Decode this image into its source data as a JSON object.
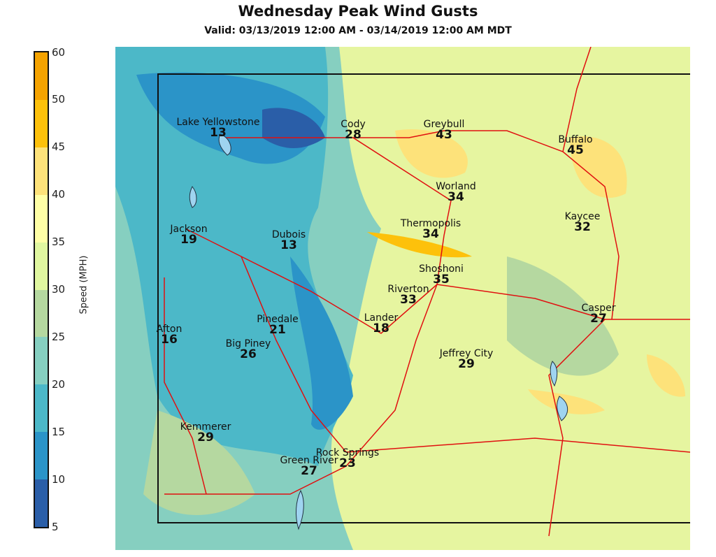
{
  "title": "Wednesday Peak Wind Gusts",
  "subtitle": "Valid: 03/13/2019 12:00 AM - 03/14/2019 12:00 AM MDT",
  "colorbar": {
    "label": "Speed (MPH)",
    "ticks": [
      "60",
      "50",
      "45",
      "40",
      "35",
      "30",
      "25",
      "20",
      "15",
      "10",
      "5"
    ],
    "colors": [
      "#f5a300",
      "#fdc10b",
      "#fde27a",
      "#ffffa6",
      "#e0f7a0",
      "#b5d8a0",
      "#86cfc0",
      "#4cb8c8",
      "#2b94c8",
      "#2a5ea8"
    ]
  },
  "cities": [
    {
      "name": "Lake Yellowstone",
      "value": "13"
    },
    {
      "name": "Cody",
      "value": "28"
    },
    {
      "name": "Greybull",
      "value": "43"
    },
    {
      "name": "Buffalo",
      "value": "45"
    },
    {
      "name": "Worland",
      "value": "34"
    },
    {
      "name": "Kaycee",
      "value": "32"
    },
    {
      "name": "Jackson",
      "value": "19"
    },
    {
      "name": "Dubois",
      "value": "13"
    },
    {
      "name": "Thermopolis",
      "value": "34"
    },
    {
      "name": "Shoshoni",
      "value": "35"
    },
    {
      "name": "Riverton",
      "value": "33"
    },
    {
      "name": "Casper",
      "value": "27"
    },
    {
      "name": "Afton",
      "value": "16"
    },
    {
      "name": "Pinedale",
      "value": "21"
    },
    {
      "name": "Lander",
      "value": "18"
    },
    {
      "name": "Big Piney",
      "value": "26"
    },
    {
      "name": "Jeffrey City",
      "value": "29"
    },
    {
      "name": "Kemmerer",
      "value": "29"
    },
    {
      "name": "Rock Springs",
      "value": "23"
    },
    {
      "name": "Green River",
      "value": "27"
    }
  ]
}
